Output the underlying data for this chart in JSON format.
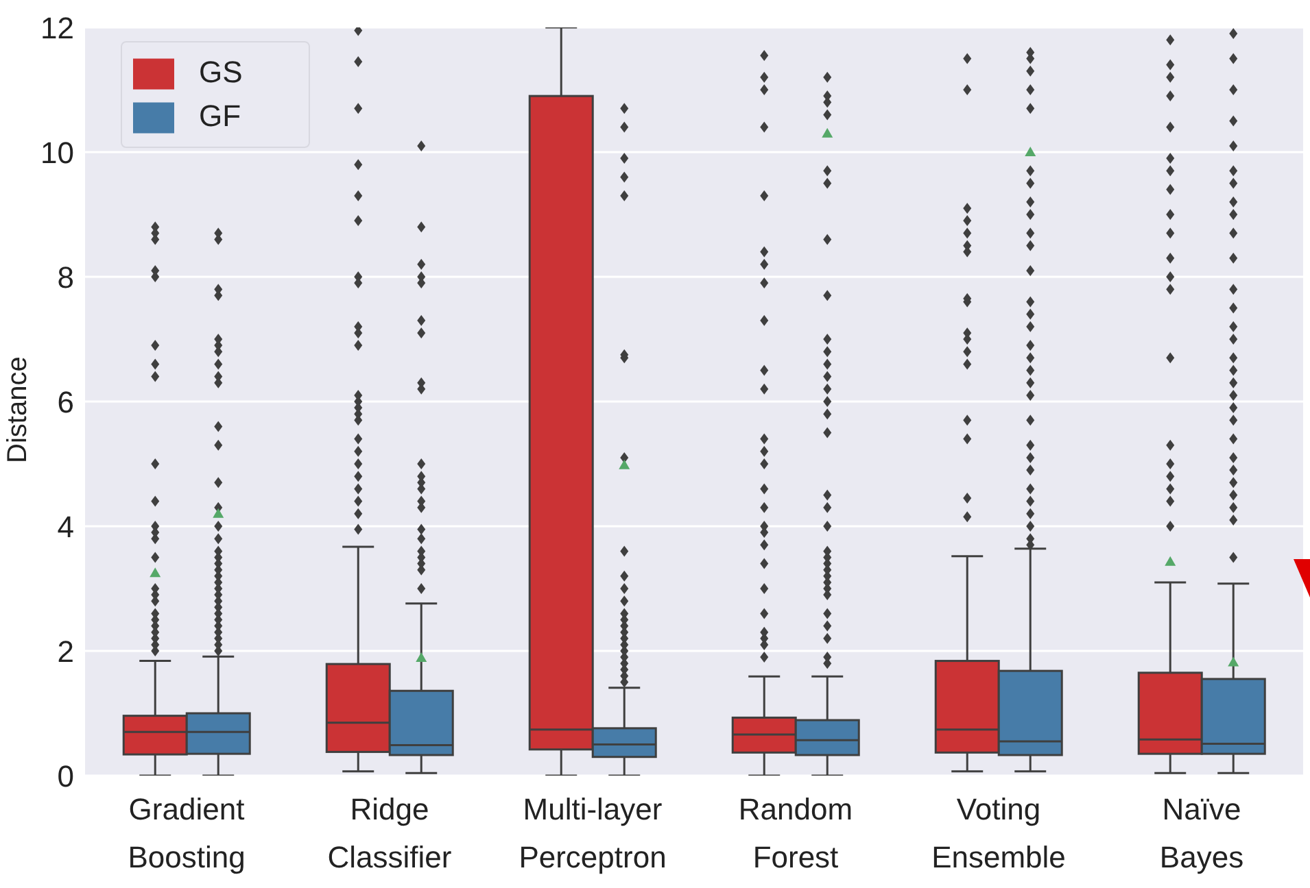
{
  "chart_data": {
    "type": "box",
    "ylabel": "Distance",
    "categories": [
      "Gradient Boosting",
      "Ridge Classifier",
      "Multi-layer Perceptron",
      "Random Forest",
      "Voting Ensemble",
      "Naïve Bayes"
    ],
    "ylim": [
      0,
      12
    ],
    "yticks": [
      0,
      2,
      4,
      6,
      8,
      10,
      12
    ],
    "grid": "y",
    "legend": "top left",
    "series": [
      {
        "name": "GS",
        "color": "#cb3335",
        "boxes": [
          {
            "low": 0,
            "q1": 0.34,
            "median": 0.7,
            "q3": 0.96,
            "high": 1.84,
            "mean": 3.25,
            "outliers": [
              2.0,
              2.1,
              2.2,
              2.3,
              2.4,
              2.5,
              2.6,
              2.8,
              2.9,
              3.0,
              3.5,
              3.8,
              3.9,
              4.0,
              4.4,
              5.0,
              6.4,
              6.6,
              6.9,
              8.0,
              8.1,
              8.6,
              8.7,
              8.8
            ]
          },
          {
            "low": 0.07,
            "q1": 0.38,
            "median": 0.85,
            "q3": 1.79,
            "high": 3.67,
            "outliers": [
              3.95,
              4.2,
              4.4,
              4.6,
              4.8,
              5.0,
              5.2,
              5.4,
              5.7,
              5.8,
              5.9,
              6.0,
              6.1,
              6.9,
              7.1,
              7.2,
              7.9,
              8.0,
              8.9,
              9.3,
              9.8,
              10.7,
              11.45,
              11.95
            ]
          },
          {
            "low": 0,
            "q1": 0.42,
            "median": 0.74,
            "q3": 10.9,
            "high": 12
          },
          {
            "low": 0,
            "q1": 0.37,
            "median": 0.66,
            "q3": 0.93,
            "high": 1.59,
            "outliers": [
              1.9,
              2.1,
              2.2,
              2.3,
              2.6,
              3.0,
              3.4,
              3.7,
              3.9,
              4.0,
              4.3,
              4.6,
              5.0,
              5.2,
              5.4,
              6.2,
              6.5,
              7.3,
              7.9,
              8.2,
              8.4,
              9.3,
              10.4,
              11.0,
              11.2,
              11.55
            ]
          },
          {
            "low": 0.07,
            "q1": 0.37,
            "median": 0.74,
            "q3": 1.84,
            "high": 3.52,
            "outliers": [
              4.15,
              4.45,
              5.4,
              5.7,
              6.6,
              6.8,
              7.0,
              7.1,
              7.6,
              7.65,
              8.4,
              8.5,
              8.7,
              8.9,
              9.1,
              11.0,
              11.5
            ]
          },
          {
            "low": 0.04,
            "q1": 0.35,
            "median": 0.58,
            "q3": 1.65,
            "high": 3.1,
            "mean": 3.43,
            "outliers": [
              4.0,
              4.4,
              4.6,
              4.8,
              5.0,
              5.3,
              6.7,
              7.8,
              8.0,
              8.3,
              8.7,
              9.0,
              9.4,
              9.7,
              9.9,
              10.4,
              10.9,
              11.2,
              11.4,
              11.8
            ]
          }
        ]
      },
      {
        "name": "GF",
        "color": "#477ca8",
        "boxes": [
          {
            "low": 0,
            "q1": 0.35,
            "median": 0.7,
            "q3": 1.0,
            "high": 1.91,
            "mean": 4.2,
            "outliers": [
              2.0,
              2.1,
              2.2,
              2.3,
              2.4,
              2.5,
              2.6,
              2.7,
              2.8,
              2.9,
              3.0,
              3.1,
              3.2,
              3.3,
              3.4,
              3.5,
              3.6,
              3.8,
              4.0,
              4.3,
              4.7,
              5.3,
              5.6,
              6.3,
              6.4,
              6.6,
              6.8,
              6.9,
              7.0,
              7.7,
              7.8,
              8.6,
              8.7
            ]
          },
          {
            "low": 0.04,
            "q1": 0.33,
            "median": 0.49,
            "q3": 1.36,
            "high": 2.76,
            "mean": 1.89,
            "outliers": [
              3.0,
              3.3,
              3.4,
              3.5,
              3.6,
              3.8,
              3.95,
              4.3,
              4.4,
              4.6,
              4.7,
              4.8,
              5.0,
              6.2,
              6.3,
              7.1,
              7.3,
              7.9,
              8.0,
              8.2,
              8.8,
              10.1
            ]
          },
          {
            "low": 0,
            "q1": 0.3,
            "median": 0.5,
            "q3": 0.76,
            "high": 1.41,
            "mean": 4.98,
            "outliers": [
              1.5,
              1.6,
              1.7,
              1.8,
              1.9,
              2.0,
              2.1,
              2.2,
              2.3,
              2.4,
              2.5,
              2.6,
              2.8,
              3.0,
              3.2,
              3.6,
              5.1,
              6.7,
              6.75,
              9.3,
              9.6,
              9.9,
              10.4,
              10.7
            ]
          },
          {
            "low": 0,
            "q1": 0.33,
            "median": 0.57,
            "q3": 0.89,
            "high": 1.59,
            "mean": 10.3,
            "outliers": [
              1.8,
              1.9,
              2.2,
              2.4,
              2.6,
              2.9,
              3.0,
              3.1,
              3.2,
              3.3,
              3.4,
              3.5,
              3.6,
              4.0,
              4.3,
              4.5,
              5.5,
              5.8,
              6.0,
              6.2,
              6.4,
              6.6,
              6.8,
              7.0,
              7.7,
              8.6,
              9.5,
              9.7,
              10.6,
              10.8,
              10.9,
              11.2
            ]
          },
          {
            "low": 0.07,
            "q1": 0.33,
            "median": 0.55,
            "q3": 1.68,
            "high": 3.64,
            "mean": 10.0,
            "outliers": [
              3.7,
              3.8,
              4.0,
              4.2,
              4.4,
              4.6,
              4.9,
              5.1,
              5.3,
              5.7,
              6.1,
              6.3,
              6.5,
              6.7,
              6.9,
              7.2,
              7.4,
              7.6,
              8.1,
              8.5,
              8.7,
              9.0,
              9.2,
              9.5,
              9.7,
              10.7,
              11.0,
              11.3,
              11.5,
              11.6
            ]
          },
          {
            "low": 0.04,
            "q1": 0.35,
            "median": 0.51,
            "q3": 1.55,
            "high": 3.08,
            "mean": 1.82,
            "outliers": [
              3.5,
              4.1,
              4.3,
              4.5,
              4.7,
              4.9,
              5.1,
              5.4,
              5.7,
              5.9,
              6.1,
              6.3,
              6.5,
              6.7,
              7.0,
              7.2,
              7.5,
              7.8,
              8.3,
              8.7,
              9.0,
              9.2,
              9.5,
              9.7,
              10.1,
              10.5,
              11.0,
              11.5,
              11.9
            ]
          }
        ]
      }
    ]
  }
}
